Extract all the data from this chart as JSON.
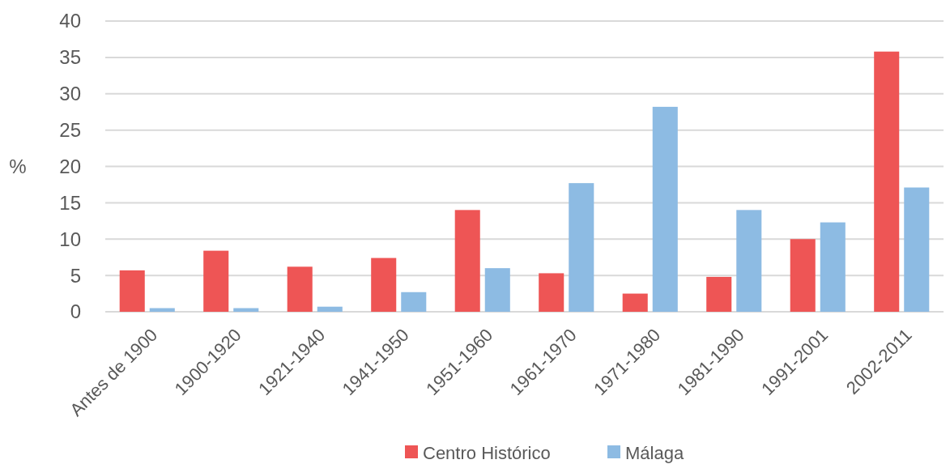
{
  "chart_data": {
    "type": "bar",
    "ylabel": "%",
    "categories": [
      "Antes de 1900",
      "1900-1920",
      "1921-1940",
      "1941-1950",
      "1951-1960",
      "1961-1970",
      "1971-1980",
      "1981-1990",
      "1991-2001",
      "2002-2011"
    ],
    "series": [
      {
        "name": "Centro Histórico",
        "color": "#ee5555",
        "values": [
          5.7,
          8.4,
          6.2,
          7.4,
          14.0,
          5.3,
          2.5,
          4.8,
          10.0,
          35.8
        ]
      },
      {
        "name": "Málaga",
        "color": "#8dbbe3",
        "values": [
          0.5,
          0.5,
          0.7,
          2.7,
          6.0,
          17.7,
          28.2,
          14.0,
          12.3,
          17.1
        ]
      }
    ],
    "ylim": [
      0,
      40
    ],
    "yticks": [
      0,
      5,
      10,
      15,
      20,
      25,
      30,
      35,
      40
    ],
    "grid": "y",
    "legend": "bottom"
  }
}
